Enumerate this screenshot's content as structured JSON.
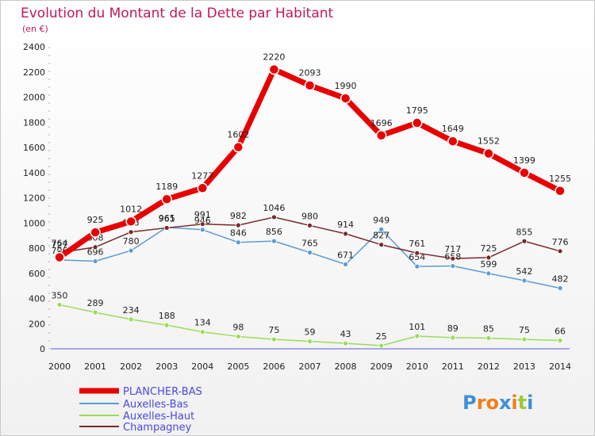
{
  "chart_data": {
    "type": "line",
    "title": "Evolution du Montant de la Dette par Habitant",
    "subtitle": "(en €)",
    "xlabel": "",
    "ylabel": "",
    "x": [
      "2000",
      "2001",
      "2002",
      "2003",
      "2004",
      "2005",
      "2006",
      "2007",
      "2008",
      "2009",
      "2010",
      "2011",
      "2012",
      "2013",
      "2014"
    ],
    "ylim": [
      0,
      2400
    ],
    "yticks": [
      0,
      200,
      400,
      600,
      800,
      1000,
      1200,
      1400,
      1600,
      1800,
      2000,
      2200,
      2400
    ],
    "grid": false,
    "legend_position": "bottom-left",
    "series": [
      {
        "name": "PLANCHER-BAS",
        "color": "#e80000",
        "width": 7,
        "marker": 6,
        "values": [
          727,
          925,
          1012,
          1189,
          1277,
          1602,
          2220,
          2093,
          1990,
          1696,
          1795,
          1649,
          1552,
          1399,
          1255
        ],
        "labels": [
          "727",
          "925",
          "1012",
          "1189",
          "1277",
          "1602",
          "2220",
          "2093",
          "1990",
          "1696",
          "1795",
          "1649",
          "1552",
          "1399",
          "1255"
        ]
      },
      {
        "name": "Auxelles-Bas",
        "color": "#5b9bd5",
        "width": 1.5,
        "marker": 3,
        "values": [
          706,
          696,
          780,
          965,
          946,
          846,
          856,
          765,
          671,
          949,
          654,
          658,
          599,
          542,
          482
        ],
        "labels": [
          "706",
          "696",
          "780",
          "965",
          "946",
          "846",
          "856",
          "765",
          "671",
          "949",
          "654",
          "658",
          "599",
          "542",
          "482"
        ]
      },
      {
        "name": "Auxelles-Haut",
        "color": "#99dd55",
        "width": 1.5,
        "marker": 3,
        "values": [
          350,
          289,
          234,
          188,
          134,
          98,
          75,
          59,
          43,
          25,
          101,
          89,
          85,
          75,
          66
        ],
        "labels": [
          "350",
          "289",
          "234",
          "188",
          "134",
          "98",
          "75",
          "59",
          "43",
          "25",
          "101",
          "89",
          "85",
          "75",
          "66"
        ]
      },
      {
        "name": "Champagney",
        "color": "#7a2828",
        "width": 1.5,
        "marker": 3,
        "values": [
          764,
          808,
          928,
          961,
          991,
          982,
          1046,
          980,
          914,
          827,
          761,
          717,
          725,
          855,
          776
        ],
        "labels": [
          "764",
          "808",
          "928",
          "961",
          "991",
          "982",
          "1046",
          "980",
          "914",
          "827",
          "761",
          "717",
          "725",
          "855",
          "776"
        ]
      }
    ]
  },
  "logo": {
    "text": "Proxiti",
    "colors": [
      "#3d8fd9",
      "#ef7f1a",
      "#ef7f1a",
      "#3d8fd9",
      "#ef7f1a",
      "#9bc93b",
      "#3d8fd9"
    ]
  }
}
